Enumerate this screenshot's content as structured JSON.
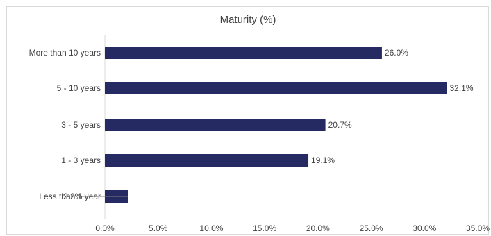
{
  "chart_data": {
    "type": "bar",
    "orientation": "horizontal",
    "title": "Maturity (%)",
    "categories": [
      "More than 10 years",
      "5 - 10 years",
      "3 - 5 years",
      "1 - 3 years",
      "Less than 1 year"
    ],
    "values": [
      26.0,
      32.1,
      20.7,
      19.1,
      2.2
    ],
    "value_labels": [
      "26.0%",
      "32.1%",
      "20.7%",
      "19.1%",
      "2.2%"
    ],
    "xlim": [
      0,
      35
    ],
    "xticks": [
      "0.0%",
      "5.0%",
      "10.0%",
      "15.0%",
      "20.0%",
      "25.0%",
      "30.0%",
      "35.0%"
    ],
    "grid": false,
    "legend": "none",
    "bar_color": "#262a63"
  }
}
